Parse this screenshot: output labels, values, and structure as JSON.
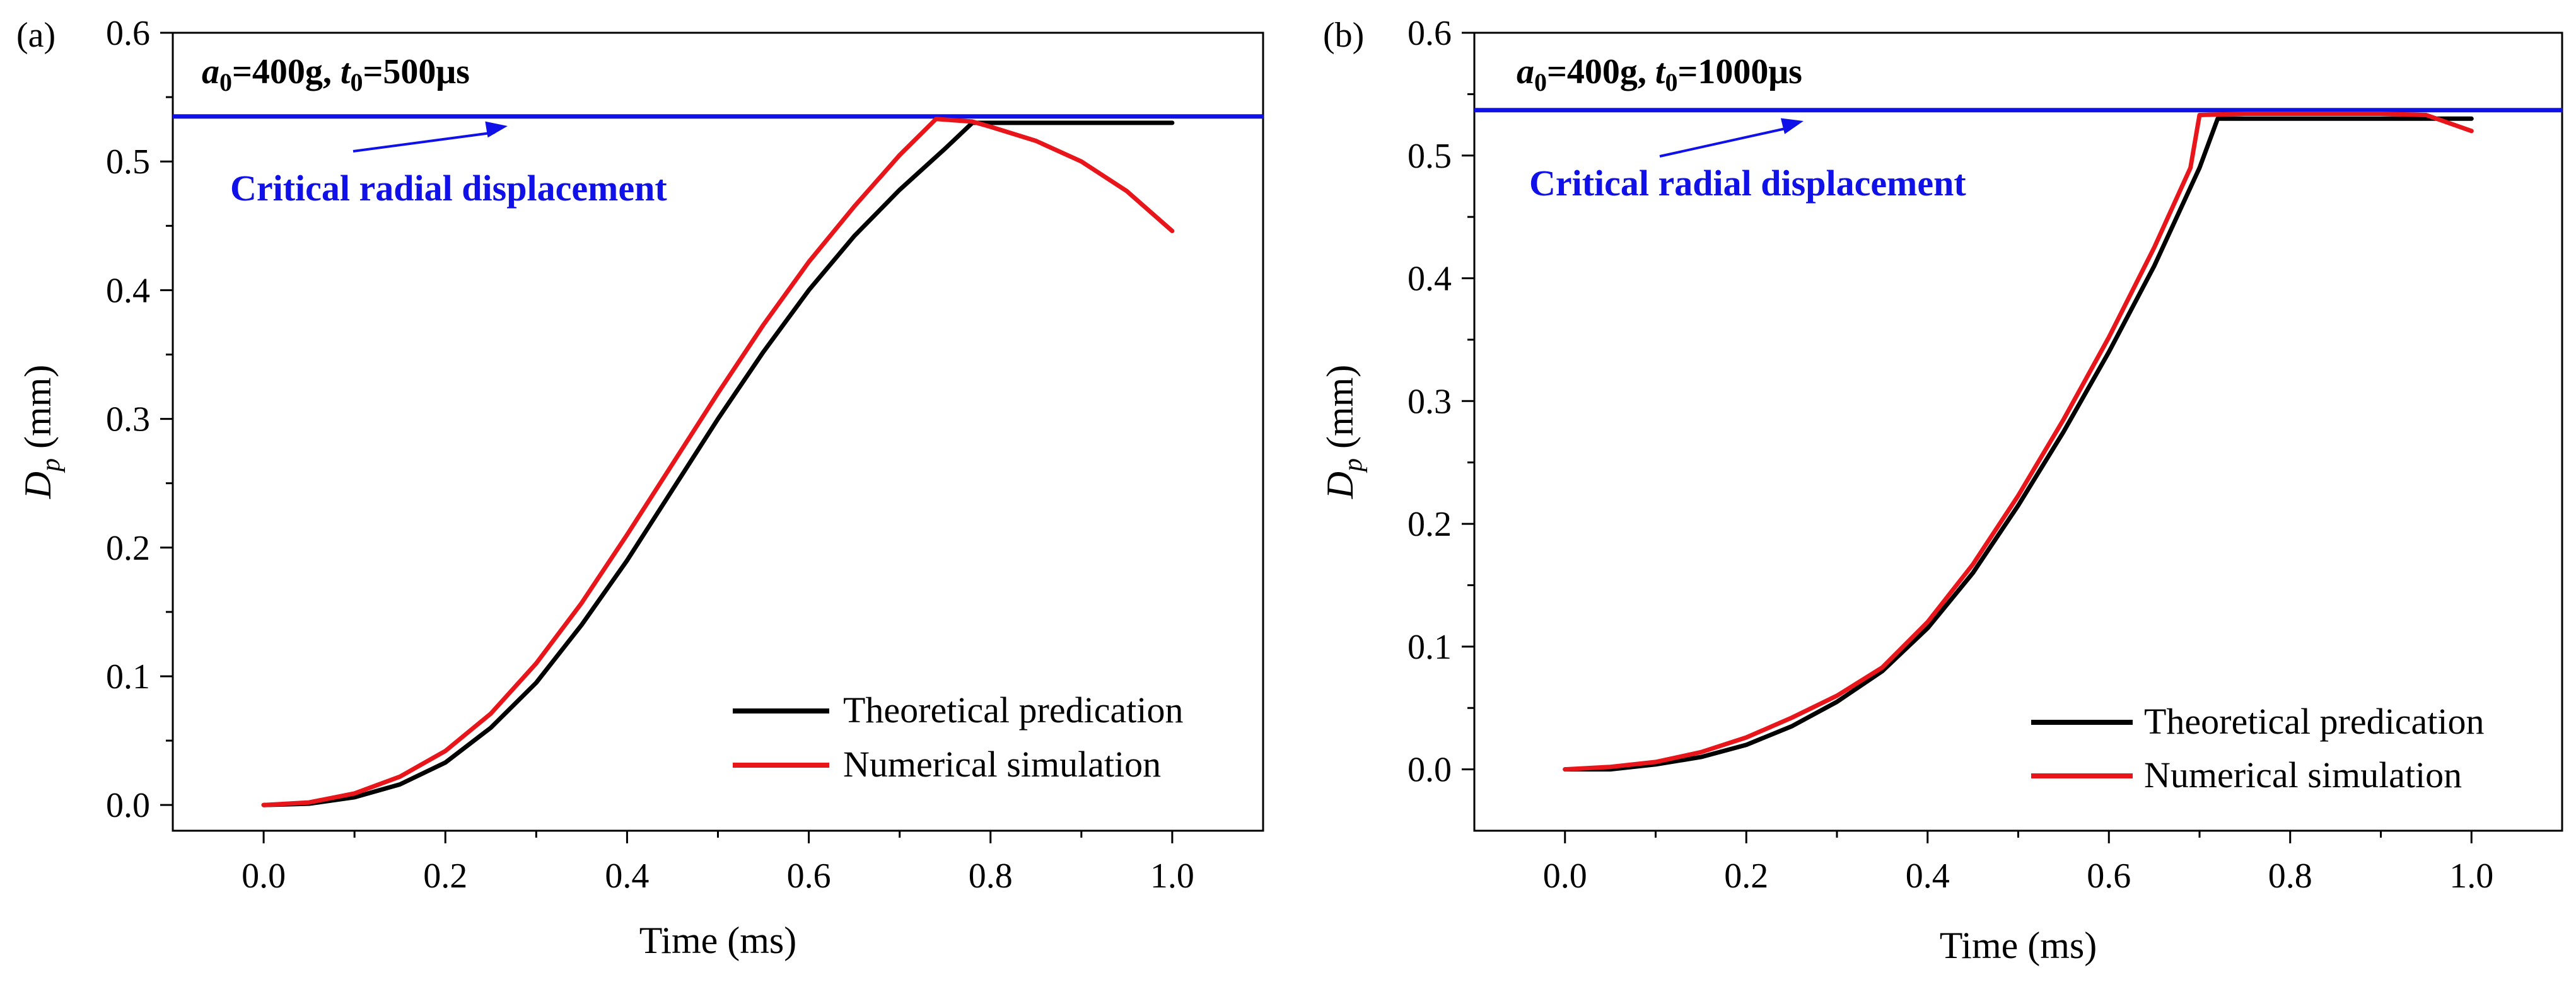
{
  "chart_data": [
    {
      "type": "line",
      "panel_label": "(a)",
      "condition": {
        "a_symbol": "a",
        "a_sub": "0",
        "a_value": "=400g, ",
        "t_symbol": "t",
        "t_sub": "0",
        "t_value": "=500μs"
      },
      "xlabel": "Time (ms)",
      "ylabel": {
        "symbol": "D",
        "sub": "p",
        "unit": " (mm)"
      },
      "xlim": [
        -0.1,
        1.1
      ],
      "ylim": [
        -0.02,
        0.6
      ],
      "xticks": [
        0.0,
        0.2,
        0.4,
        0.6,
        0.8,
        1.0
      ],
      "xtick_labels": [
        "0.0",
        "0.2",
        "0.4",
        "0.6",
        "0.8",
        "1.0"
      ],
      "yticks": [
        0.0,
        0.1,
        0.2,
        0.3,
        0.4,
        0.5,
        0.6
      ],
      "ytick_labels": [
        "0.0",
        "0.1",
        "0.2",
        "0.3",
        "0.4",
        "0.5",
        "0.6"
      ],
      "critical_line": {
        "value": 0.535,
        "label": "Critical radial displacement",
        "color": "#1010e8"
      },
      "legend": {
        "position": "bottom-right"
      },
      "series": [
        {
          "name": "Theoretical predication",
          "color": "#000000",
          "x": [
            0.0,
            0.05,
            0.1,
            0.15,
            0.2,
            0.25,
            0.3,
            0.35,
            0.4,
            0.45,
            0.5,
            0.55,
            0.6,
            0.65,
            0.7,
            0.75,
            0.78,
            0.8,
            0.9,
            1.0
          ],
          "y": [
            0.0,
            0.001,
            0.006,
            0.016,
            0.033,
            0.06,
            0.095,
            0.14,
            0.19,
            0.245,
            0.3,
            0.352,
            0.4,
            0.442,
            0.478,
            0.51,
            0.53,
            0.53,
            0.53,
            0.53
          ]
        },
        {
          "name": "Numerical simulation",
          "color": "#e8151b",
          "x": [
            0.0,
            0.05,
            0.1,
            0.15,
            0.2,
            0.25,
            0.3,
            0.35,
            0.4,
            0.45,
            0.5,
            0.55,
            0.6,
            0.65,
            0.7,
            0.74,
            0.78,
            0.8,
            0.85,
            0.9,
            0.95,
            1.0
          ],
          "y": [
            0.0,
            0.002,
            0.009,
            0.022,
            0.042,
            0.071,
            0.11,
            0.157,
            0.21,
            0.265,
            0.32,
            0.373,
            0.422,
            0.465,
            0.505,
            0.533,
            0.531,
            0.527,
            0.516,
            0.5,
            0.477,
            0.446
          ]
        }
      ]
    },
    {
      "type": "line",
      "panel_label": "(b)",
      "condition": {
        "a_symbol": "a",
        "a_sub": "0",
        "a_value": "=400g, ",
        "t_symbol": "t",
        "t_sub": "0",
        "t_value": "=1000μs"
      },
      "xlabel": "Time (ms)",
      "ylabel": {
        "symbol": "D",
        "sub": "p",
        "unit": " (mm)"
      },
      "xlim": [
        -0.1,
        1.1
      ],
      "ylim": [
        -0.05,
        0.6
      ],
      "xticks": [
        0.0,
        0.2,
        0.4,
        0.6,
        0.8,
        1.0
      ],
      "xtick_labels": [
        "0.0",
        "0.2",
        "0.4",
        "0.6",
        "0.8",
        "1.0"
      ],
      "yticks": [
        0.0,
        0.1,
        0.2,
        0.3,
        0.4,
        0.5,
        0.6
      ],
      "ytick_labels": [
        "0.0",
        "0.1",
        "0.2",
        "0.3",
        "0.4",
        "0.5",
        "0.6"
      ],
      "critical_line": {
        "value": 0.537,
        "label": "Critical radial displacement",
        "color": "#1010e8"
      },
      "legend": {
        "position": "bottom-right"
      },
      "series": [
        {
          "name": "Theoretical predication",
          "color": "#000000",
          "x": [
            0.0,
            0.05,
            0.1,
            0.15,
            0.2,
            0.25,
            0.3,
            0.35,
            0.4,
            0.45,
            0.5,
            0.55,
            0.6,
            0.65,
            0.7,
            0.72,
            0.8,
            0.9,
            1.0
          ],
          "y": [
            0.0,
            0.0,
            0.004,
            0.01,
            0.02,
            0.035,
            0.055,
            0.08,
            0.115,
            0.16,
            0.215,
            0.275,
            0.34,
            0.41,
            0.49,
            0.53,
            0.53,
            0.53,
            0.53
          ]
        },
        {
          "name": "Numerical simulation",
          "color": "#e8151b",
          "x": [
            0.0,
            0.05,
            0.1,
            0.15,
            0.2,
            0.25,
            0.3,
            0.35,
            0.4,
            0.45,
            0.5,
            0.55,
            0.6,
            0.65,
            0.69,
            0.7,
            0.75,
            0.8,
            0.85,
            0.9,
            0.95,
            1.0
          ],
          "y": [
            0.0,
            0.002,
            0.006,
            0.014,
            0.026,
            0.042,
            0.06,
            0.083,
            0.12,
            0.167,
            0.223,
            0.285,
            0.352,
            0.425,
            0.49,
            0.533,
            0.534,
            0.534,
            0.534,
            0.534,
            0.533,
            0.52
          ]
        }
      ]
    }
  ]
}
